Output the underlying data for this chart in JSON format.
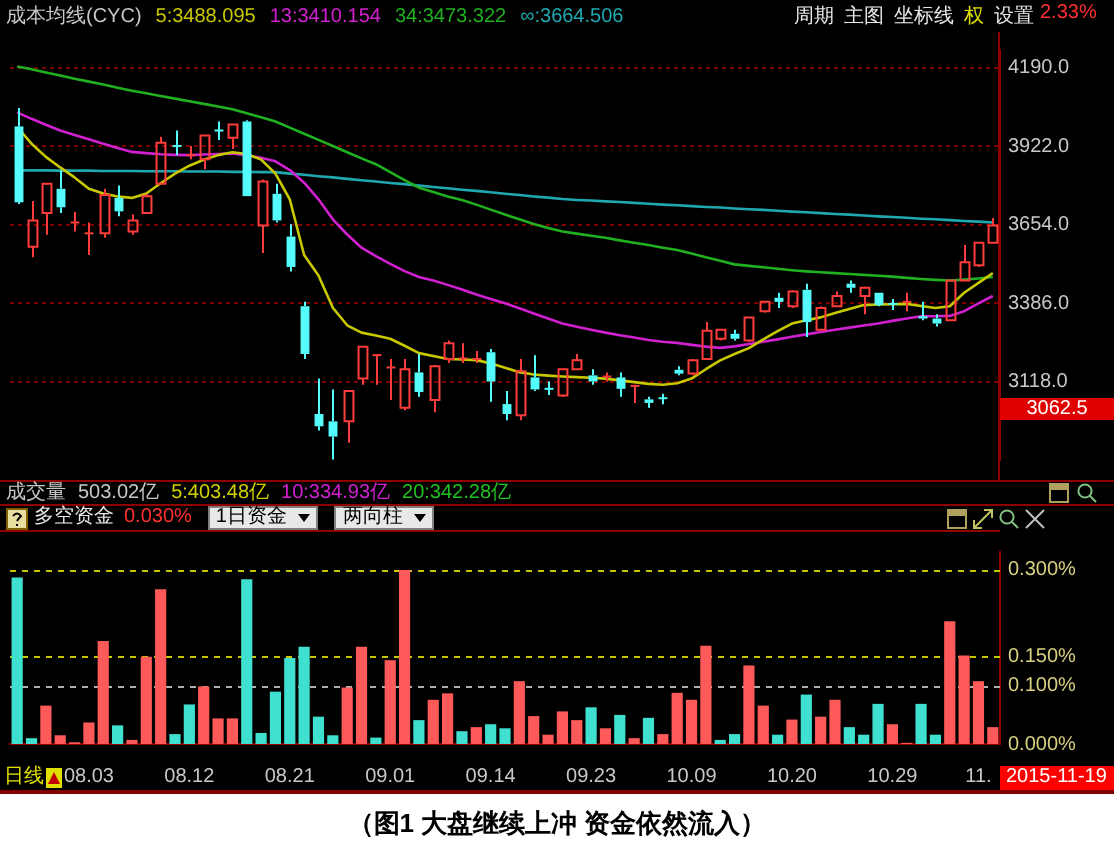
{
  "chart_data": [
    {
      "type": "candlestick",
      "categories": [
        null,
        null,
        null,
        null,
        null,
        null,
        null,
        null,
        null,
        null,
        null,
        null,
        null,
        null,
        null,
        null,
        null,
        null,
        null,
        null,
        null,
        null,
        null,
        null,
        null,
        null,
        null,
        null,
        null,
        null,
        null,
        null,
        null,
        null,
        null,
        null,
        null,
        null,
        null,
        null,
        null,
        null,
        null,
        null,
        null,
        null,
        null,
        null,
        null,
        null,
        null,
        null,
        null,
        null,
        null,
        null,
        null,
        null,
        null,
        null,
        null,
        null,
        null,
        null,
        null,
        null,
        null,
        null,
        null
      ],
      "ohlc": [
        [
          3989,
          4052,
          3724,
          3730
        ],
        [
          3578,
          3734,
          3542,
          3668
        ],
        [
          3693,
          3793,
          3619,
          3793
        ],
        [
          3776,
          3839,
          3693,
          3713
        ],
        [
          3661,
          3697,
          3630,
          3661
        ],
        [
          3624,
          3661,
          3550,
          3624
        ],
        [
          3624,
          3776,
          3609,
          3755
        ],
        [
          3745,
          3787,
          3682,
          3699
        ],
        [
          3630,
          3688,
          3619,
          3668
        ],
        [
          3693,
          3759,
          3693,
          3751
        ],
        [
          3793,
          3954,
          3793,
          3933
        ],
        [
          3922,
          3975,
          3891,
          3922
        ],
        [
          3891,
          3922,
          3877,
          3891
        ],
        [
          3877,
          3958,
          3843,
          3958
        ],
        [
          3975,
          4006,
          3943,
          3975
        ],
        [
          3950,
          3996,
          3912,
          3996
        ],
        [
          4006,
          4010,
          3751,
          3751
        ],
        [
          3651,
          3808,
          3557,
          3801
        ],
        [
          3759,
          3793,
          3661,
          3668
        ],
        [
          3613,
          3655,
          3494,
          3509
        ],
        [
          3375,
          3390,
          3195,
          3212
        ],
        [
          3007,
          3128,
          2951,
          2965
        ],
        [
          2982,
          3091,
          2852,
          2930
        ],
        [
          2982,
          3086,
          2909,
          3086
        ],
        [
          3128,
          3237,
          3107,
          3237
        ],
        [
          3208,
          3212,
          3107,
          3208
        ],
        [
          3166,
          3195,
          3055,
          3166
        ],
        [
          3028,
          3195,
          3020,
          3160
        ],
        [
          3149,
          3212,
          3066,
          3082
        ],
        [
          3055,
          3174,
          3013,
          3170
        ],
        [
          3195,
          3258,
          3181,
          3249
        ],
        [
          3197,
          3249,
          3181,
          3197
        ],
        [
          3195,
          3222,
          3181,
          3195
        ],
        [
          3218,
          3229,
          3049,
          3118
        ],
        [
          3041,
          3086,
          2986,
          3007
        ],
        [
          3003,
          3195,
          2986,
          3153
        ],
        [
          3132,
          3208,
          3086,
          3091
        ],
        [
          3093,
          3118,
          3072,
          3093
        ],
        [
          3070,
          3160,
          3066,
          3160
        ],
        [
          3160,
          3212,
          3160,
          3191
        ],
        [
          3139,
          3160,
          3107,
          3118
        ],
        [
          3135,
          3149,
          3118,
          3135
        ],
        [
          3132,
          3149,
          3066,
          3093
        ],
        [
          3103,
          3107,
          3045,
          3103
        ],
        [
          3057,
          3066,
          3028,
          3045
        ],
        [
          3061,
          3076,
          3040,
          3061
        ],
        [
          3158,
          3170,
          3139,
          3145
        ],
        [
          3145,
          3195,
          3139,
          3191
        ],
        [
          3195,
          3321,
          3195,
          3291
        ],
        [
          3264,
          3295,
          3258,
          3295
        ],
        [
          3281,
          3295,
          3258,
          3264
        ],
        [
          3258,
          3337,
          3254,
          3337
        ],
        [
          3358,
          3390,
          3354,
          3390
        ],
        [
          3404,
          3421,
          3369,
          3390
        ],
        [
          3375,
          3429,
          3369,
          3425
        ],
        [
          3431,
          3452,
          3270,
          3321
        ],
        [
          3295,
          3375,
          3295,
          3369
        ],
        [
          3375,
          3425,
          3375,
          3410
        ],
        [
          3452,
          3463,
          3421,
          3438
        ],
        [
          3410,
          3442,
          3348,
          3438
        ],
        [
          3421,
          3421,
          3375,
          3379
        ],
        [
          3383,
          3400,
          3362,
          3383
        ],
        [
          3390,
          3421,
          3358,
          3390
        ],
        [
          3341,
          3390,
          3327,
          3333
        ],
        [
          3333,
          3348,
          3306,
          3316
        ],
        [
          3327,
          3463,
          3327,
          3463
        ],
        [
          3463,
          3584,
          3463,
          3525
        ],
        [
          3515,
          3592,
          3509,
          3592
        ],
        [
          3592,
          3676,
          3592,
          3651
        ]
      ],
      "colors": [
        "#54fcfc",
        "#ff3c3c",
        "#ff3c3c",
        "#54fcfc",
        "#ff3c3c",
        "#ff3c3c",
        "#ff3c3c",
        "#54fcfc",
        "#ff3c3c",
        "#ff3c3c",
        "#ff3c3c",
        "#54fcfc",
        "#ff3c3c",
        "#ff3c3c",
        "#54fcfc",
        "#ff3c3c",
        "#54fcfc",
        "#ff3c3c",
        "#54fcfc",
        "#54fcfc",
        "#54fcfc",
        "#54fcfc",
        "#54fcfc",
        "#ff3c3c",
        "#ff3c3c",
        "#ff3c3c",
        "#ff3c3c",
        "#ff3c3c",
        "#54fcfc",
        "#ff3c3c",
        "#ff3c3c",
        "#ff3c3c",
        "#ff3c3c",
        "#54fcfc",
        "#54fcfc",
        "#ff3c3c",
        "#54fcfc",
        "#54fcfc",
        "#ff3c3c",
        "#ff3c3c",
        "#54fcfc",
        "#ff3c3c",
        "#54fcfc",
        "#ff3c3c",
        "#54fcfc",
        "#54fcfc",
        "#54fcfc",
        "#ff3c3c",
        "#ff3c3c",
        "#ff3c3c",
        "#54fcfc",
        "#ff3c3c",
        "#ff3c3c",
        "#54fcfc",
        "#ff3c3c",
        "#54fcfc",
        "#ff3c3c",
        "#ff3c3c",
        "#54fcfc",
        "#ff3c3c",
        "#54fcfc",
        "#54fcfc",
        "#ff3c3c",
        "#54fcfc",
        "#54fcfc",
        "#ff3c3c",
        "#ff3c3c",
        "#ff3c3c",
        "#ff3c3c"
      ],
      "series": [
        {
          "name": "5:3488.095",
          "type": "line",
          "color": "#c8c800",
          "values": [
            3987,
            3930,
            3885,
            3849,
            3815,
            3776,
            3760,
            3750,
            3745,
            3760,
            3795,
            3828,
            3855,
            3875,
            3891,
            3901,
            3895,
            3876,
            3828,
            3740,
            3550,
            3480,
            3370,
            3310,
            3285,
            3275,
            3264,
            3240,
            3215,
            3205,
            3195,
            3193,
            3191,
            3180,
            3165,
            3150,
            3142,
            3138,
            3135,
            3133,
            3131,
            3128,
            3122,
            3116,
            3110,
            3107,
            3112,
            3128,
            3160,
            3190,
            3212,
            3232,
            3262,
            3290,
            3316,
            3327,
            3337,
            3352,
            3366,
            3379,
            3381,
            3382,
            3383,
            3376,
            3369,
            3375,
            3421,
            3455,
            3488
          ]
        },
        {
          "name": "13:3410.154",
          "type": "line",
          "color": "#d020d0",
          "values": [
            4037,
            4015,
            3995,
            3975,
            3960,
            3945,
            3930,
            3915,
            3902,
            3898,
            3894,
            3892,
            3891,
            3893,
            3895,
            3897,
            3890,
            3882,
            3870,
            3840,
            3797,
            3740,
            3672,
            3620,
            3575,
            3546,
            3520,
            3495,
            3475,
            3463,
            3448,
            3432,
            3415,
            3400,
            3385,
            3368,
            3350,
            3333,
            3316,
            3305,
            3295,
            3285,
            3276,
            3268,
            3260,
            3254,
            3250,
            3243,
            3237,
            3233,
            3238,
            3246,
            3254,
            3262,
            3271,
            3279,
            3287,
            3295,
            3302,
            3309,
            3316,
            3325,
            3333,
            3341,
            3341,
            3342,
            3358,
            3385,
            3410
          ]
        },
        {
          "name": "34:3473.322",
          "type": "line",
          "color": "#20b020",
          "values": [
            4194,
            4184,
            4173,
            4163,
            4152,
            4142,
            4132,
            4121,
            4111,
            4102,
            4093,
            4084,
            4075,
            4066,
            4057,
            4048,
            4034,
            4020,
            4006,
            3985,
            3964,
            3943,
            3922,
            3901,
            3880,
            3860,
            3833,
            3806,
            3780,
            3765,
            3750,
            3738,
            3722,
            3705,
            3688,
            3672,
            3656,
            3642,
            3630,
            3623,
            3616,
            3609,
            3600,
            3592,
            3584,
            3575,
            3567,
            3555,
            3542,
            3530,
            3518,
            3513,
            3508,
            3503,
            3498,
            3494,
            3491,
            3488,
            3485,
            3482,
            3479,
            3476,
            3472,
            3468,
            3465,
            3463,
            3466,
            3470,
            3475
          ]
        },
        {
          "name": "∞:3664.506",
          "type": "line",
          "color": "#20a8b0",
          "values": [
            3839,
            3839,
            3839,
            3838,
            3838,
            3838,
            3837,
            3837,
            3837,
            3836,
            3836,
            3836,
            3835,
            3835,
            3835,
            3834,
            3834,
            3833,
            3833,
            3828,
            3824,
            3819,
            3815,
            3810,
            3805,
            3801,
            3796,
            3792,
            3787,
            3782,
            3778,
            3773,
            3769,
            3764,
            3759,
            3755,
            3750,
            3746,
            3741,
            3738,
            3736,
            3733,
            3731,
            3728,
            3725,
            3722,
            3720,
            3717,
            3714,
            3712,
            3709,
            3706,
            3704,
            3701,
            3698,
            3696,
            3693,
            3690,
            3688,
            3685,
            3682,
            3680,
            3677,
            3674,
            3672,
            3669,
            3666,
            3664,
            3661
          ]
        }
      ],
      "ylim": [
        2850,
        4250
      ],
      "yticks": [
        {
          "value": 3118,
          "label": "3118.0"
        },
        {
          "value": 3386,
          "label": "3386.0"
        },
        {
          "value": 3654,
          "label": "3654.0"
        },
        {
          "value": 3922,
          "label": "3922.0"
        },
        {
          "value": 4190,
          "label": "4190.0"
        }
      ],
      "grid": "y",
      "tick_labels": "y",
      "marker": "none",
      "legend": "top left",
      "annotations": [
        "成本均线(CYC)",
        "周期",
        "主图",
        "坐标线",
        "权",
        "设置",
        "2.33%",
        "3062.5"
      ]
    },
    {
      "type": "bar",
      "categories": [
        null,
        null,
        null,
        null,
        null,
        "08.03",
        null,
        null,
        null,
        null,
        null,
        null,
        "08.12",
        null,
        null,
        null,
        null,
        null,
        null,
        "08.21",
        null,
        null,
        null,
        null,
        null,
        null,
        "09.01",
        null,
        null,
        null,
        null,
        null,
        null,
        "09.14",
        null,
        null,
        null,
        null,
        null,
        null,
        "09.23",
        null,
        null,
        null,
        null,
        null,
        null,
        "10.09",
        null,
        null,
        null,
        null,
        null,
        null,
        "10.20",
        null,
        null,
        null,
        null,
        null,
        null,
        "10.29",
        null,
        null,
        null,
        null,
        null,
        "11.",
        null
      ],
      "values": [
        0.286,
        0.01,
        0.066,
        0.015,
        0.003,
        0.037,
        0.177,
        0.032,
        0.007,
        0.15,
        0.266,
        0.017,
        0.068,
        0.099,
        0.044,
        0.044,
        0.283,
        0.019,
        0.09,
        0.148,
        0.167,
        0.047,
        0.015,
        0.097,
        0.167,
        0.011,
        0.144,
        0.299,
        0.041,
        0.076,
        0.087,
        0.022,
        0.029,
        0.034,
        0.027,
        0.108,
        0.048,
        0.016,
        0.056,
        0.041,
        0.063,
        0.027,
        0.05,
        0.01,
        0.045,
        0.017,
        0.088,
        0.076,
        0.169,
        0.007,
        0.017,
        0.135,
        0.066,
        0.016,
        0.042,
        0.085,
        0.047,
        0.076,
        0.029,
        0.016,
        0.069,
        0.034,
        0.002,
        0.069,
        0.016,
        0.211,
        0.152,
        0.108,
        0.029
      ],
      "colors": [
        "#40e0d0",
        "#40e0d0",
        "#ff5a5a",
        "#ff5a5a",
        "#ff5a5a",
        "#ff5a5a",
        "#ff5a5a",
        "#40e0d0",
        "#ff5a5a",
        "#ff5a5a",
        "#ff5a5a",
        "#40e0d0",
        "#40e0d0",
        "#ff5a5a",
        "#ff5a5a",
        "#ff5a5a",
        "#40e0d0",
        "#40e0d0",
        "#40e0d0",
        "#40e0d0",
        "#40e0d0",
        "#40e0d0",
        "#40e0d0",
        "#ff5a5a",
        "#ff5a5a",
        "#40e0d0",
        "#ff5a5a",
        "#ff5a5a",
        "#40e0d0",
        "#ff5a5a",
        "#ff5a5a",
        "#40e0d0",
        "#ff5a5a",
        "#40e0d0",
        "#40e0d0",
        "#ff5a5a",
        "#ff5a5a",
        "#ff5a5a",
        "#ff5a5a",
        "#ff5a5a",
        "#40e0d0",
        "#ff5a5a",
        "#40e0d0",
        "#ff5a5a",
        "#40e0d0",
        "#ff5a5a",
        "#ff5a5a",
        "#ff5a5a",
        "#ff5a5a",
        "#40e0d0",
        "#40e0d0",
        "#ff5a5a",
        "#ff5a5a",
        "#40e0d0",
        "#ff5a5a",
        "#40e0d0",
        "#ff5a5a",
        "#ff5a5a",
        "#40e0d0",
        "#40e0d0",
        "#40e0d0",
        "#ff5a5a",
        "#ff5a5a",
        "#40e0d0",
        "#40e0d0",
        "#ff5a5a",
        "#ff5a5a",
        "#ff5a5a",
        "#ff5a5a"
      ],
      "ylim": [
        0,
        0.33
      ],
      "yticks": [
        {
          "value": 0,
          "label": "0.000%"
        },
        {
          "value": 0.1,
          "label": "0.100%"
        },
        {
          "value": 0.15,
          "label": "0.150%"
        },
        {
          "value": 0.3,
          "label": "0.300%"
        }
      ],
      "ref_lines": [
        {
          "axis": "y",
          "value": 0.3,
          "color": "#c8c800",
          "line_style": "dashed"
        },
        {
          "axis": "y",
          "value": 0.15,
          "color": "#c8c800",
          "line_style": "dashed"
        },
        {
          "axis": "y",
          "value": 0.1,
          "color": "#b0b0b0",
          "line_style": "dashed"
        }
      ],
      "annotations": [
        "成交量",
        "503.02亿",
        "5:403.48亿",
        "10:334.93亿",
        "20:342.28亿",
        "多空资金",
        "0.030%",
        "1日资金",
        "两向柱",
        "日线",
        "2015-11-19",
        "（图1  大盘继续上冲  资金依然流入）"
      ]
    }
  ]
}
